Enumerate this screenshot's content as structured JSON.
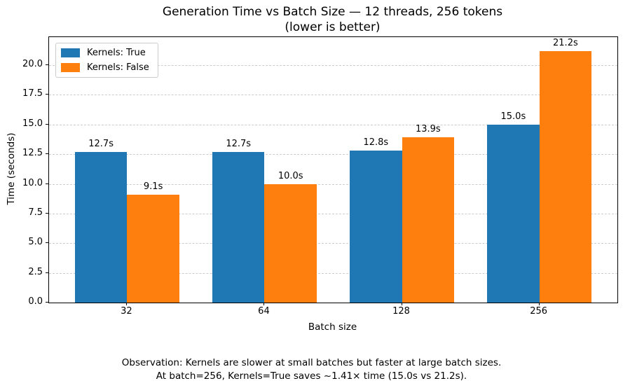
{
  "chart_data": {
    "type": "bar",
    "title": "Generation Time vs Batch Size — 12 threads, 256 tokens",
    "subtitle": "(lower is better)",
    "xlabel": "Batch size",
    "ylabel": "Time (seconds)",
    "categories": [
      "32",
      "64",
      "128",
      "256"
    ],
    "series": [
      {
        "name": "Kernels: True",
        "color": "#1f77b4",
        "values": [
          12.7,
          12.7,
          12.8,
          15.0
        ],
        "value_labels": [
          "12.7s",
          "12.7s",
          "12.8s",
          "15.0s"
        ]
      },
      {
        "name": "Kernels: False",
        "color": "#ff7f0e",
        "values": [
          9.1,
          10.0,
          13.9,
          21.2
        ],
        "value_labels": [
          "9.1s",
          "10.0s",
          "13.9s",
          "21.2s"
        ]
      }
    ],
    "ylim": [
      0,
      22.36
    ],
    "yticks": [
      0.0,
      2.5,
      5.0,
      7.5,
      10.0,
      12.5,
      15.0,
      17.5,
      20.0
    ],
    "ytick_labels": [
      "0.0",
      "2.5",
      "5.0",
      "7.5",
      "10.0",
      "12.5",
      "15.0",
      "17.5",
      "20.0"
    ],
    "grid": "horizontal-dashed",
    "grid_color": "#cccccc",
    "legend_position": "upper-left",
    "annotations": [
      "Observation: Kernels are slower at small batches but faster at large batch sizes.",
      "At batch=256, Kernels=True saves ~1.41× time (15.0s vs 21.2s)."
    ]
  }
}
